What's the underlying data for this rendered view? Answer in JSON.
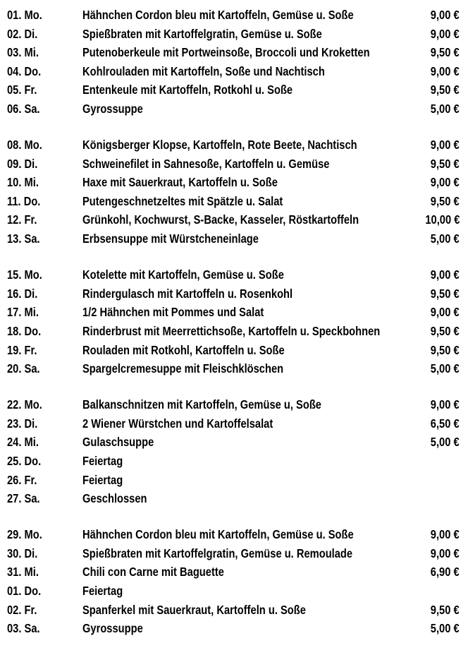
{
  "weeks": [
    [
      {
        "date": "01. Mo.",
        "dish": "Hähnchen Cordon bleu mit Kartoffeln, Gemüse u. Soße",
        "price": "9,00 €"
      },
      {
        "date": "02. Di.",
        "dish": "Spießbraten mit Kartoffelgratin, Gemüse u. Soße",
        "price": "9,00 €"
      },
      {
        "date": "03. Mi.",
        "dish": "Putenoberkeule mit Portweinsoße, Broccoli und Kroketten",
        "price": "9,50 €"
      },
      {
        "date": "04. Do.",
        "dish": "Kohlrouladen mit Kartoffeln, Soße und Nachtisch",
        "price": "9,00 €"
      },
      {
        "date": "05. Fr.",
        "dish": "Entenkeule mit Kartoffeln, Rotkohl u. Soße",
        "price": "9,50 €"
      },
      {
        "date": "06. Sa.",
        "dish": "Gyrossuppe",
        "price": "5,00 €"
      }
    ],
    [
      {
        "date": "08. Mo.",
        "dish": "Königsberger Klopse, Kartoffeln, Rote Beete, Nachtisch",
        "price": "9,00 €"
      },
      {
        "date": "09. Di.",
        "dish": "Schweinefilet in Sahnesoße, Kartoffeln u. Gemüse",
        "price": "9,50 €"
      },
      {
        "date": "10. Mi.",
        "dish": "Haxe mit Sauerkraut, Kartoffeln u. Soße",
        "price": "9,00 €"
      },
      {
        "date": "11. Do.",
        "dish": "Putengeschnetzeltes mit Spätzle u. Salat",
        "price": "9,50 €"
      },
      {
        "date": "12. Fr.",
        "dish": "Grünkohl, Kochwurst, S-Backe, Kasseler, Röstkartoffeln",
        "price": "10,00 €"
      },
      {
        "date": "13. Sa.",
        "dish": "Erbsensuppe mit Würstcheneinlage",
        "price": "5,00 €"
      }
    ],
    [
      {
        "date": "15. Mo.",
        "dish": "Kotelette mit Kartoffeln, Gemüse u. Soße",
        "price": "9,00 €"
      },
      {
        "date": "16. Di.",
        "dish": "Rindergulasch mit Kartoffeln u. Rosenkohl",
        "price": "9,50 €"
      },
      {
        "date": "17. Mi.",
        "dish": "1/2 Hähnchen mit Pommes und Salat",
        "price": "9,00 €"
      },
      {
        "date": "18. Do.",
        "dish": "Rinderbrust mit Meerrettichsoße, Kartoffeln u. Speckbohnen",
        "price": "9,50 €"
      },
      {
        "date": "19. Fr.",
        "dish": "Rouladen mit Rotkohl, Kartoffeln u. Soße",
        "price": "9,50 €"
      },
      {
        "date": "20. Sa.",
        "dish": "Spargelcremesuppe mit Fleischklöschen",
        "price": "5,00 €"
      }
    ],
    [
      {
        "date": "22. Mo.",
        "dish": "Balkanschnitzen mit Kartoffeln, Gemüse u, Soße",
        "price": "9,00 €"
      },
      {
        "date": "23. Di.",
        "dish": "2 Wiener Würstchen und Kartoffelsalat",
        "price": "6,50 €"
      },
      {
        "date": "24. Mi.",
        "dish": "Gulaschsuppe",
        "price": "5,00 €"
      },
      {
        "date": "25. Do.",
        "dish": "Feiertag",
        "price": ""
      },
      {
        "date": "26. Fr.",
        "dish": "Feiertag",
        "price": ""
      },
      {
        "date": "27. Sa.",
        "dish": "Geschlossen",
        "price": ""
      }
    ],
    [
      {
        "date": "29. Mo.",
        "dish": "Hähnchen Cordon bleu mit Kartoffeln, Gemüse u. Soße",
        "price": "9,00 €"
      },
      {
        "date": "30. Di.",
        "dish": "Spießbraten mit Kartoffelgratin, Gemüse u. Remoulade",
        "price": "9,00 €"
      },
      {
        "date": "31. Mi.",
        "dish": "Chili con Carne mit Baguette",
        "price": "6,90 €"
      },
      {
        "date": "01. Do.",
        "dish": "Feiertag",
        "price": ""
      },
      {
        "date": "02. Fr.",
        "dish": "Spanferkel mit Sauerkraut, Kartoffeln u. Soße",
        "price": "9,50 €"
      },
      {
        "date": "03. Sa.",
        "dish": "Gyrossuppe",
        "price": "5,00 €"
      }
    ]
  ]
}
